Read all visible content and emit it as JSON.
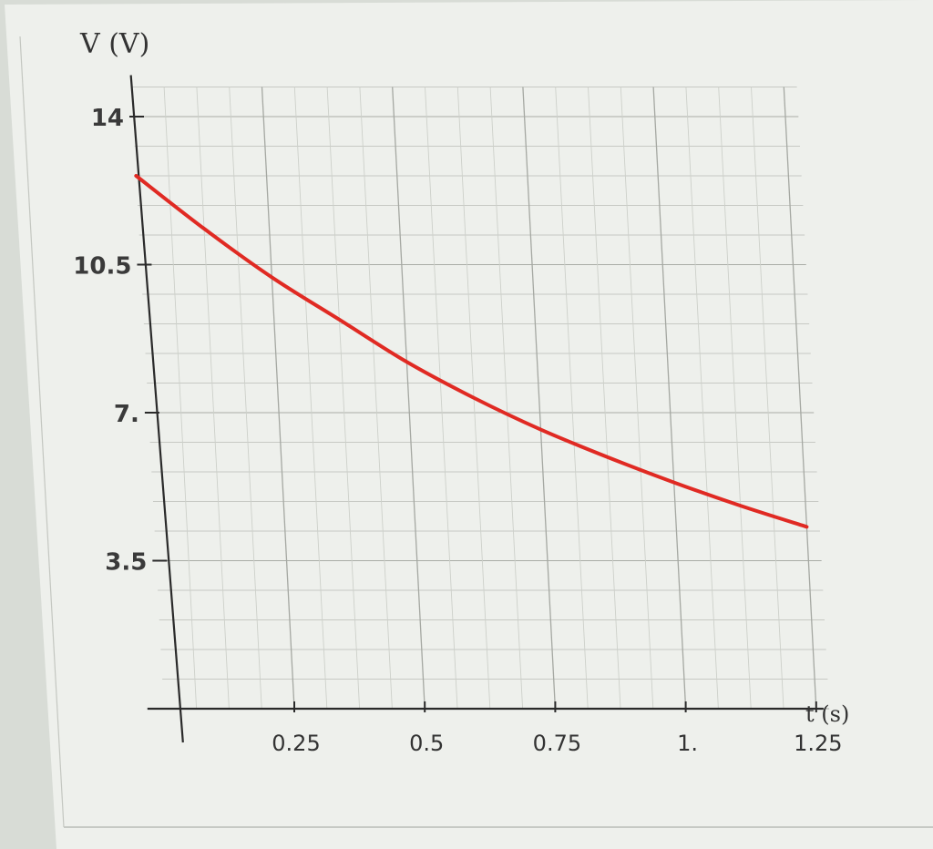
{
  "chart_data": {
    "type": "line",
    "title": "",
    "ylabel": "V (V)",
    "xlabel": "t (s)",
    "xlim": [
      0,
      1.25
    ],
    "ylim": [
      0,
      14
    ],
    "x_ticks": [
      {
        "value": 0.25,
        "label": "0.25"
      },
      {
        "value": 0.5,
        "label": "0.5"
      },
      {
        "value": 0.75,
        "label": "0.75"
      },
      {
        "value": 1.0,
        "label": "1."
      },
      {
        "value": 1.25,
        "label": "1.25"
      }
    ],
    "y_ticks": [
      {
        "value": 3.5,
        "label": "3.5"
      },
      {
        "value": 7,
        "label": "7."
      },
      {
        "value": 10.5,
        "label": "10.5"
      },
      {
        "value": 14,
        "label": "14"
      }
    ],
    "grid": true,
    "series": [
      {
        "color": "#e02a23",
        "x": [
          0,
          0.125,
          0.25,
          0.375,
          0.5,
          0.625,
          0.75,
          0.875,
          1.0,
          1.125,
          1.25
        ],
        "y": [
          12.6,
          11.35,
          10.2,
          9.2,
          8.2,
          7.35,
          6.6,
          5.95,
          5.35,
          4.8,
          4.3
        ]
      }
    ]
  }
}
